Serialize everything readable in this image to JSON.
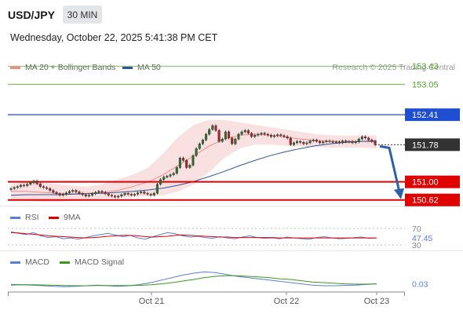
{
  "header": {
    "pair": "USD/JPY",
    "timeframe": "30 MIN",
    "datetime": "Wednesday, October 22, 2025 5:41:38 PM CET"
  },
  "research_note": "Research © 2025 Trading Central",
  "legends": {
    "main": [
      {
        "label": "MA 20 + Bollinger Bands",
        "color": "#f08a8a"
      },
      {
        "label": "MA 50",
        "color": "#2e5597"
      }
    ],
    "rsi": [
      {
        "label": "RSI",
        "color": "#5b7fd6"
      },
      {
        "label": "9MA",
        "color": "#e00000"
      }
    ],
    "macd": [
      {
        "label": "MACD",
        "color": "#5b7fd6"
      },
      {
        "label": "MACD Signal",
        "color": "#3a9a1a"
      }
    ]
  },
  "colors": {
    "up_candle": "#2f6e2f",
    "down_candle": "#b22222",
    "resistance": "#55a530",
    "pivot": "#1f4fd0",
    "support": "#e00000",
    "last_price_bg": "#333333",
    "arrow": "#2e5fa8"
  },
  "chart_data": [
    {
      "type": "candlestick",
      "title": "USD/JPY",
      "timeframe": "30 MIN",
      "x_tick_labels": [
        "Oct 21",
        "Oct 22",
        "Oct 23"
      ],
      "ylim": [
        150.5,
        153.5
      ],
      "levels": [
        {
          "value": 153.43,
          "label": "153.43",
          "kind": "resistance"
        },
        {
          "value": 153.05,
          "label": "153.05",
          "kind": "resistance"
        },
        {
          "value": 152.41,
          "label": "152.41",
          "kind": "pivot"
        },
        {
          "value": 151.0,
          "label": "151.00",
          "kind": "support"
        },
        {
          "value": 150.62,
          "label": "150.62",
          "kind": "support"
        }
      ],
      "last_price": {
        "value": 151.78,
        "label": "151.78"
      },
      "forecast_target": 150.62,
      "close": [
        150.86,
        150.88,
        150.9,
        150.93,
        150.92,
        150.95,
        150.98,
        151.02,
        150.96,
        150.9,
        150.88,
        150.86,
        150.82,
        150.78,
        150.75,
        150.72,
        150.74,
        150.77,
        150.8,
        150.82,
        150.79,
        150.76,
        150.73,
        150.7,
        150.72,
        150.75,
        150.78,
        150.8,
        150.78,
        150.75,
        150.72,
        150.7,
        150.68,
        150.7,
        150.73,
        150.76,
        150.74,
        150.72,
        150.74,
        150.77,
        150.79,
        150.76,
        150.74,
        150.72,
        150.76,
        150.95,
        151.05,
        151.1,
        151.12,
        151.15,
        151.18,
        151.3,
        151.5,
        151.45,
        151.3,
        151.35,
        151.55,
        151.7,
        151.8,
        151.88,
        152.0,
        152.1,
        152.18,
        152.08,
        151.85,
        151.9,
        152.05,
        151.92,
        151.8,
        151.9,
        152.0,
        152.05,
        152.08,
        152.02,
        151.95,
        151.98,
        152.0,
        152.02,
        152.0,
        151.98,
        151.95,
        151.97,
        151.99,
        151.97,
        151.95,
        151.92,
        151.78,
        151.82,
        151.85,
        151.83,
        151.8,
        151.82,
        151.86,
        151.88,
        151.85,
        151.82,
        151.84,
        151.86,
        151.85,
        151.83,
        151.84,
        151.82,
        151.86,
        151.84,
        151.85,
        151.82,
        151.84,
        151.9,
        151.95,
        151.92,
        151.88,
        151.85,
        151.78
      ],
      "ma20_bollinger": {
        "mid": [
          150.8,
          150.8,
          150.78,
          150.76,
          150.75,
          150.76,
          150.78,
          150.82,
          150.9,
          151.0,
          151.15,
          151.35,
          151.55,
          151.75,
          151.9,
          151.98,
          152.0,
          151.98,
          151.94,
          151.9,
          151.87,
          151.85,
          151.85,
          151.85,
          151.84
        ],
        "upper": [
          150.95,
          151.0,
          150.98,
          150.95,
          150.92,
          150.9,
          150.95,
          151.05,
          151.15,
          151.3,
          151.6,
          151.95,
          152.2,
          152.3,
          152.3,
          152.25,
          152.2,
          152.15,
          152.1,
          152.05,
          152.0,
          151.98,
          151.97,
          151.98,
          151.98
        ],
        "lower": [
          150.62,
          150.6,
          150.58,
          150.58,
          150.6,
          150.62,
          150.65,
          150.66,
          150.68,
          150.7,
          150.72,
          150.8,
          150.95,
          151.2,
          151.5,
          151.7,
          151.78,
          151.78,
          151.76,
          151.74,
          151.73,
          151.72,
          151.72,
          151.72,
          151.7
        ]
      },
      "ma50": [
        150.72,
        150.73,
        150.73,
        150.73,
        150.74,
        150.75,
        150.76,
        150.78,
        150.8,
        150.83,
        150.87,
        150.93,
        151.01,
        151.11,
        151.22,
        151.34,
        151.45,
        151.55,
        151.63,
        151.7,
        151.76,
        151.8,
        151.83,
        151.85,
        151.86
      ]
    },
    {
      "type": "line",
      "title": "RSI",
      "ylim": [
        30,
        70
      ],
      "y_tick_labels": [
        "70",
        "30"
      ],
      "last_value_label": "47.45",
      "series": [
        {
          "name": "RSI",
          "values": [
            62,
            58,
            55,
            60,
            52,
            48,
            50,
            45,
            47,
            44,
            48,
            52,
            55,
            58,
            54,
            50,
            53,
            47,
            44,
            50,
            55,
            60,
            57,
            52,
            49,
            51,
            48,
            46,
            50,
            47,
            45,
            49,
            52,
            48,
            46,
            47,
            45,
            49,
            47,
            45,
            44,
            48,
            50,
            47,
            45,
            46,
            48,
            49,
            46,
            47
          ]
        },
        {
          "name": "9MA",
          "values": [
            60,
            59,
            57,
            56,
            54,
            52,
            51,
            50,
            49,
            48,
            47,
            48,
            49,
            51,
            52,
            53,
            53,
            52,
            50,
            49,
            50,
            51,
            53,
            54,
            53,
            52,
            51,
            50,
            49,
            49,
            48,
            48,
            48,
            48,
            48,
            48,
            47,
            47,
            47,
            47,
            47,
            47,
            47,
            47,
            47,
            47,
            47,
            47,
            47,
            47
          ]
        }
      ]
    },
    {
      "type": "line",
      "title": "MACD",
      "ylim": [
        -0.05,
        0.3
      ],
      "last_value_label": "0.03",
      "series": [
        {
          "name": "MACD",
          "values": [
            0.01,
            0.015,
            0.01,
            0.0,
            -0.01,
            -0.015,
            -0.01,
            0.0,
            0.01,
            0.0,
            -0.01,
            0.0,
            0.02,
            0.05,
            0.09,
            0.13,
            0.17,
            0.2,
            0.22,
            0.21,
            0.18,
            0.15,
            0.13,
            0.11,
            0.09,
            0.07,
            0.05,
            0.03,
            0.01,
            0.0,
            0.0,
            0.005,
            0.01,
            0.02,
            0.03
          ]
        },
        {
          "name": "MACD Signal",
          "values": [
            0.02,
            0.018,
            0.015,
            0.012,
            0.008,
            0.004,
            0.0,
            0.0,
            0.002,
            0.003,
            0.002,
            0.002,
            0.006,
            0.015,
            0.03,
            0.05,
            0.075,
            0.1,
            0.13,
            0.15,
            0.16,
            0.16,
            0.15,
            0.14,
            0.13,
            0.11,
            0.1,
            0.08,
            0.06,
            0.05,
            0.04,
            0.03,
            0.025,
            0.025,
            0.03
          ]
        }
      ]
    }
  ]
}
